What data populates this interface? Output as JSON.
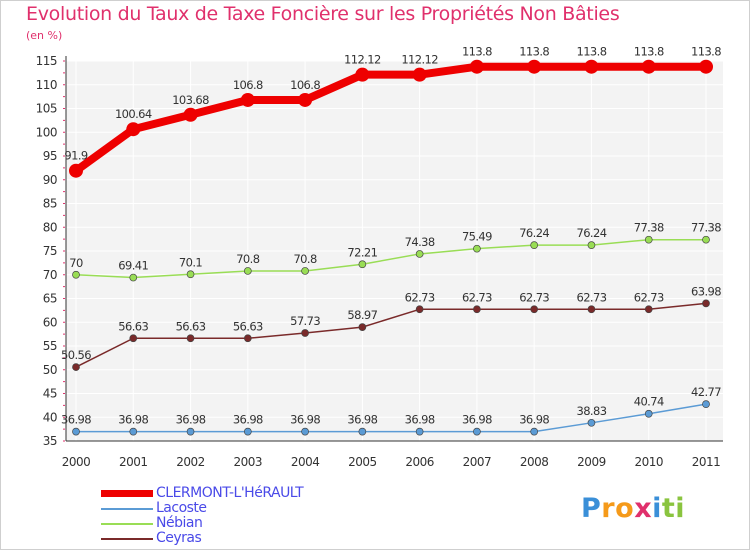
{
  "chart_data": {
    "type": "line",
    "title": "Evolution du Taux de Taxe Foncière sur les Propriétés Non Bâties",
    "ylabel": "(en %)",
    "x": [
      "2000",
      "2001",
      "2002",
      "2003",
      "2004",
      "2005",
      "2006",
      "2007",
      "2008",
      "2009",
      "2010",
      "2011"
    ],
    "ylim": [
      35,
      115
    ],
    "yticks": [
      35,
      40,
      45,
      50,
      55,
      60,
      65,
      70,
      75,
      80,
      85,
      90,
      95,
      100,
      105,
      110,
      115
    ],
    "grid": true,
    "legend_position": "bottom-left",
    "series": [
      {
        "name": "CLERMONT-L'HéRAULT",
        "color": "#ee0000",
        "values": [
          91.9,
          100.64,
          103.68,
          106.8,
          106.8,
          112.12,
          112.12,
          113.8,
          113.8,
          113.8,
          113.8,
          113.8
        ],
        "labels": [
          "91.9",
          "100.64",
          "103.68",
          "106.8",
          "106.8",
          "112.12",
          "112.12",
          "113.8",
          "113.8",
          "113.8",
          "113.8",
          "113.8"
        ]
      },
      {
        "name": "Lacoste",
        "color": "#5b9bd5",
        "values": [
          36.98,
          36.98,
          36.98,
          36.98,
          36.98,
          36.98,
          36.98,
          36.98,
          36.98,
          38.83,
          40.74,
          42.77
        ],
        "labels": [
          "36.98",
          "36.98",
          "36.98",
          "36.98",
          "36.98",
          "36.98",
          "36.98",
          "36.98",
          "36.98",
          "38.83",
          "40.74",
          "42.77"
        ]
      },
      {
        "name": "Nébian",
        "color": "#99dd55",
        "values": [
          70,
          69.41,
          70.1,
          70.8,
          70.8,
          72.21,
          74.38,
          75.49,
          76.24,
          76.24,
          77.38,
          77.38
        ],
        "labels": [
          "70",
          "69.41",
          "70.1",
          "70.8",
          "70.8",
          "72.21",
          "74.38",
          "75.49",
          "76.24",
          "76.24",
          "77.38",
          "77.38"
        ]
      },
      {
        "name": "Ceyras",
        "color": "#7a2a2a",
        "values": [
          50.56,
          56.63,
          56.63,
          56.63,
          57.73,
          58.97,
          62.73,
          62.73,
          62.73,
          62.73,
          62.73,
          63.98
        ],
        "labels": [
          "50.56",
          "56.63",
          "56.63",
          "56.63",
          "57.73",
          "58.97",
          "62.73",
          "62.73",
          "62.73",
          "62.73",
          "62.73",
          "63.98"
        ]
      }
    ]
  },
  "legend": {
    "items": [
      {
        "label": "CLERMONT-L'HéRAULT",
        "color": "#ee0000",
        "text_color": "#4a4ae8"
      },
      {
        "label": "Lacoste",
        "color": "#5b9bd5",
        "text_color": "#4a4ae8"
      },
      {
        "label": "Nébian",
        "color": "#99dd55",
        "text_color": "#4a4ae8"
      },
      {
        "label": "Ceyras",
        "color": "#7a2a2a",
        "text_color": "#4a4ae8"
      }
    ]
  },
  "logo": {
    "letters": [
      "P",
      "r",
      "o",
      "x",
      "i",
      "t",
      "i"
    ],
    "colors": [
      "#3a8fd8",
      "#f59a1a",
      "#f59a1a",
      "#e0306c",
      "#3a8fd8",
      "#8ac43f",
      "#8ac43f"
    ]
  }
}
